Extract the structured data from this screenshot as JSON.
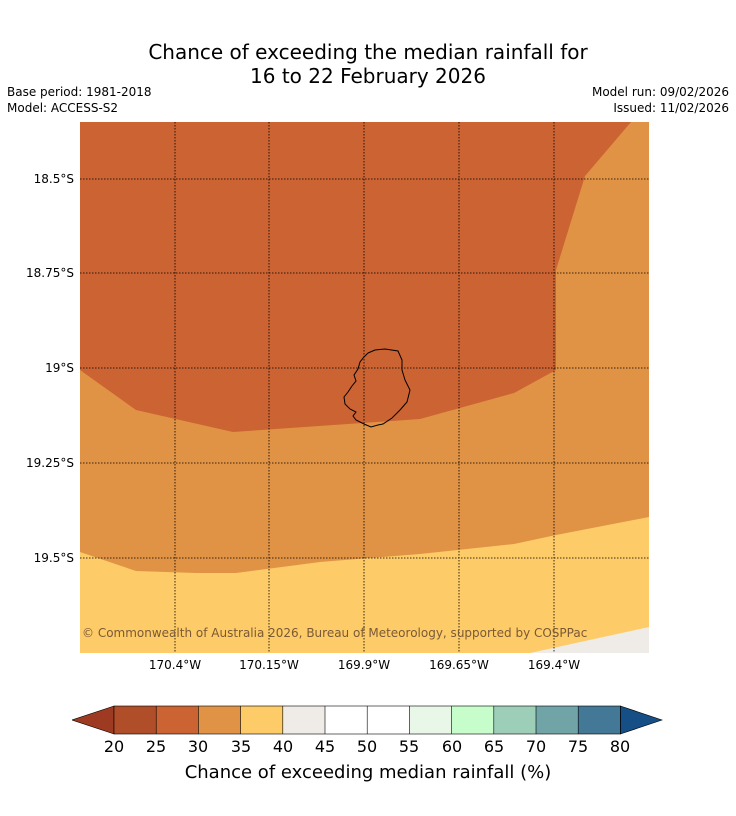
{
  "title": {
    "line1": "Chance of exceeding the median rainfall for",
    "line2": "16 to 22 February 2026"
  },
  "meta": {
    "base_period": "Base period: 1981-2018",
    "model": "Model: ACCESS-S2",
    "model_run": "Model run: 09/02/2026",
    "issued": "Issued: 11/02/2026"
  },
  "map": {
    "latitude_labels": [
      "18.5°S",
      "18.75°S",
      "19°S",
      "19.25°S",
      "19.5°S"
    ],
    "longitude_labels": [
      "170.4°W",
      "170.15°W",
      "169.9°W",
      "169.65°W",
      "169.4°W"
    ],
    "copyright": "© Commonwealth of Australia 2026, Bureau of Meteorology, supported by COSPPac"
  },
  "colorbar": {
    "ticks": [
      "20",
      "25",
      "30",
      "35",
      "40",
      "45",
      "50",
      "55",
      "60",
      "65",
      "70",
      "75",
      "80"
    ],
    "label": "Chance of exceeding median rainfall (%)",
    "colors": {
      "under_20": "#9e3a22",
      "20_25": "#b04e2a",
      "25_30": "#cb6333",
      "30_35": "#e09345",
      "35_40": "#fdcb67",
      "40_45": "#efebe7",
      "45_50": "#ffffff",
      "50_55": "#ffffff",
      "55_60": "#e9f7e9",
      "60_65": "#c7fdcb",
      "65_70": "#9dcfb8",
      "70_75": "#70a4a7",
      "75_80": "#437996",
      "over_80": "#164f86"
    }
  }
}
